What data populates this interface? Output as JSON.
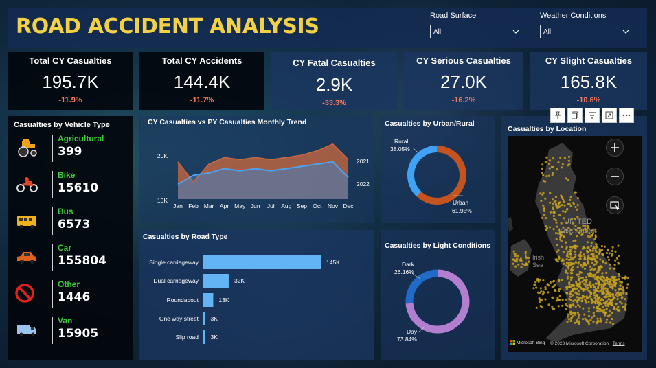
{
  "header": {
    "title": "ROAD ACCIDENT ANALYSIS",
    "road_surface": {
      "label": "Road Surface",
      "value": "All"
    },
    "weather": {
      "label": "Weather Conditions",
      "value": "All"
    }
  },
  "kpis": [
    {
      "title": "Total CY Casualties",
      "value": "195.7K",
      "change": "-11.9%"
    },
    {
      "title": "Total CY Accidents",
      "value": "144.4K",
      "change": "-11.7%"
    },
    {
      "title": "CY Fatal Casualties",
      "value": "2.9K",
      "change": "-33.3%"
    },
    {
      "title": "CY Serious Casualties",
      "value": "27.0K",
      "change": "-16.2%"
    },
    {
      "title": "CY Slight Casualties",
      "value": "165.8K",
      "change": "-10.6%"
    }
  ],
  "vehicle": {
    "title": "Casualties by Vehicle Type",
    "items": [
      {
        "name": "Agricultural",
        "count": "399",
        "icon": "tractor-icon"
      },
      {
        "name": "Bike",
        "count": "15610",
        "icon": "motorbike-icon"
      },
      {
        "name": "Bus",
        "count": "6573",
        "icon": "bus-icon"
      },
      {
        "name": "Car",
        "count": "155804",
        "icon": "car-icon"
      },
      {
        "name": "Other",
        "count": "1446",
        "icon": "no-entry-icon"
      },
      {
        "name": "Van",
        "count": "15905",
        "icon": "van-icon"
      }
    ]
  },
  "colors": {
    "accent_title": "#f2d147",
    "kpi_change": "#f07a5a",
    "cy_series": "#4ea2ee",
    "py_series": "#c8683f",
    "bar": "#62b4f4",
    "urban": "#c4531f",
    "rural": "#3fa2f4",
    "day": "#b27fcf",
    "dark": "#1f6bc7",
    "vehicle_name": "#3fc93a"
  },
  "trend": {
    "title": "CY Casualties vs PY Casualties Monthly Trend",
    "y_ticks": [
      "20K",
      "10K"
    ],
    "series_labels": [
      "2021",
      "2022"
    ]
  },
  "road_type": {
    "title": "Casualties by Road Type"
  },
  "urban": {
    "title": "Casualties by Urban/Rural",
    "rural_label": "Rural",
    "rural_pct": "38.05%",
    "urban_label": "Urban",
    "urban_pct": "61.95%"
  },
  "light": {
    "title": "Casualties by Light Conditions",
    "dark_label": "Dark",
    "dark_pct": "26.16%",
    "day_label": "Day",
    "day_pct": "73.84%"
  },
  "location": {
    "title": "Casualties by Location",
    "map_label_1": "UNITED",
    "map_label_2": "KINGDOM",
    "sea_label_1": "Irish",
    "sea_label_2": "Sea",
    "bing": "Microsoft Bing",
    "copyright": "© 2023 Microsoft Corporation",
    "terms": "Terms"
  },
  "chart_data": [
    {
      "type": "area",
      "title": "CY Casualties vs PY Casualties Monthly Trend",
      "categories": [
        "Jan",
        "Feb",
        "Mar",
        "Apr",
        "May",
        "Jun",
        "Jul",
        "Aug",
        "Sep",
        "Oct",
        "Nov",
        "Dec"
      ],
      "series": [
        {
          "name": "2021",
          "values": [
            18500,
            14000,
            18000,
            19500,
            19000,
            19500,
            19000,
            19500,
            20000,
            21000,
            22500,
            19000
          ]
        },
        {
          "name": "2022",
          "values": [
            13500,
            15500,
            16000,
            17000,
            16500,
            17000,
            16500,
            17000,
            17500,
            18000,
            18500,
            15000
          ]
        }
      ],
      "xlabel": "",
      "ylabel": "",
      "ylim": [
        10000,
        22000
      ]
    },
    {
      "type": "bar",
      "title": "Casualties by Road Type",
      "categories": [
        "Single carriageway",
        "Dual carriageway",
        "Roundabout",
        "One way street",
        "Slip road"
      ],
      "values": [
        145000,
        32000,
        13000,
        3000,
        3000
      ],
      "value_labels": [
        "145K",
        "32K",
        "13K",
        "3K",
        "3K"
      ],
      "orientation": "horizontal"
    },
    {
      "type": "pie",
      "title": "Casualties by Urban/Rural",
      "categories": [
        "Rural",
        "Urban"
      ],
      "values": [
        38.05,
        61.95
      ]
    },
    {
      "type": "pie",
      "title": "Casualties by Light Conditions",
      "categories": [
        "Dark",
        "Day"
      ],
      "values": [
        26.16,
        73.84
      ]
    }
  ]
}
